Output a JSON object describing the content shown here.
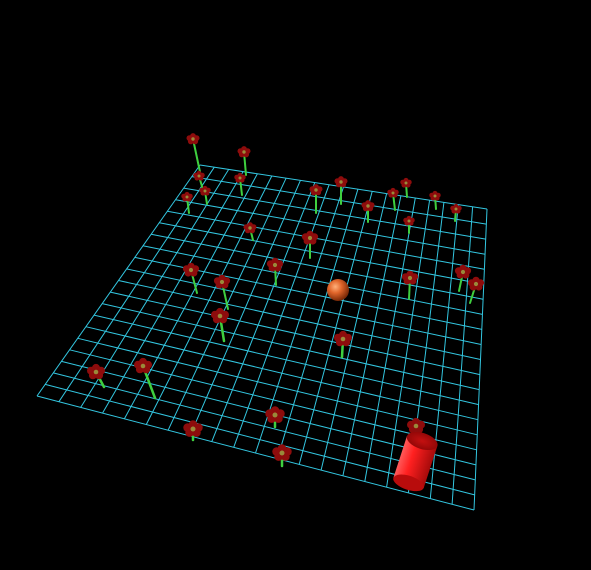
{
  "scene": {
    "background_color": "#000000",
    "grid_color": "#33c6e0",
    "grid_cells": 20
  },
  "flowers": {
    "count": 34,
    "petal_color": "#8e0c0c",
    "center_color": "#9a8a3a",
    "stem_color": "#3fcf3f"
  },
  "ball": {
    "color": "#e0652a"
  },
  "player": {
    "shape": "cylinder",
    "color": "#e01a1a"
  }
}
